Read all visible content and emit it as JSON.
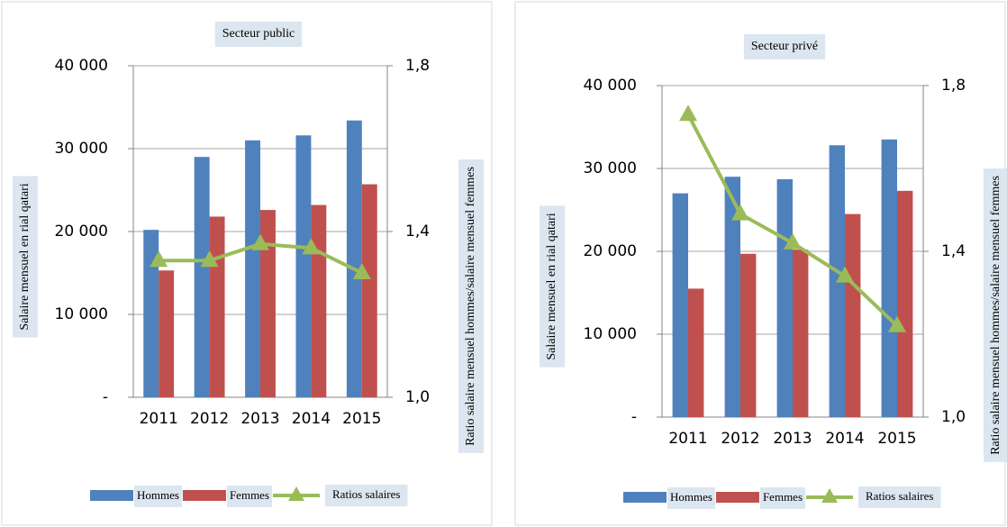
{
  "chart_data": [
    {
      "type": "bar",
      "title": "Secteur public",
      "y_label": "Salaire mensuel en rial qatari",
      "y2_label": "Ratio salaire mensuel hommes/salaire mensuel femmes",
      "categories": [
        "2011",
        "2012",
        "2013",
        "2014",
        "2015"
      ],
      "series": [
        {
          "name": "Hommes",
          "color": "#4f81bd",
          "values": [
            20200,
            29000,
            31000,
            31600,
            33400
          ]
        },
        {
          "name": "Femmes",
          "color": "#c0504d",
          "values": [
            15300,
            21800,
            22600,
            23200,
            25700
          ]
        },
        {
          "name": "Ratios salaires",
          "color": "#9bbb59",
          "axis": "y2",
          "values": [
            1.33,
            1.33,
            1.37,
            1.36,
            1.3
          ]
        }
      ],
      "ylim": [
        0,
        40000
      ],
      "yticks": [
        {
          "value": 0,
          "label": "-"
        },
        {
          "value": 10000,
          "label": "10 000"
        },
        {
          "value": 20000,
          "label": "20 000"
        },
        {
          "value": 30000,
          "label": "30 000"
        },
        {
          "value": 40000,
          "label": "40 000"
        }
      ],
      "y2lim": [
        1.0,
        1.8
      ],
      "y2ticks": [
        {
          "value": 1.0,
          "label": "1,0"
        },
        {
          "value": 1.4,
          "label": "1,4"
        },
        {
          "value": 1.8,
          "label": "1,8"
        }
      ],
      "grid": true,
      "legend": "bottom"
    },
    {
      "type": "bar",
      "title": "Secteur privé",
      "y_label": "Salaire mensuel en rial qatari",
      "y2_label": "Ratio salaire mensuel hommes/salaire mensuel femmes",
      "categories": [
        "2011",
        "2012",
        "2013",
        "2014",
        "2015"
      ],
      "series": [
        {
          "name": "Hommes",
          "color": "#4f81bd",
          "values": [
            27000,
            29000,
            28700,
            32800,
            33500
          ]
        },
        {
          "name": "Femmes",
          "color": "#c0504d",
          "values": [
            15500,
            19700,
            20200,
            24500,
            27300
          ]
        },
        {
          "name": "Ratios salaires",
          "color": "#9bbb59",
          "axis": "y2",
          "values": [
            1.73,
            1.49,
            1.42,
            1.34,
            1.22
          ]
        }
      ],
      "ylim": [
        0,
        40000
      ],
      "yticks": [
        {
          "value": 0,
          "label": "-"
        },
        {
          "value": 10000,
          "label": "10 000"
        },
        {
          "value": 20000,
          "label": "20 000"
        },
        {
          "value": 30000,
          "label": "30 000"
        },
        {
          "value": 40000,
          "label": "40 000"
        }
      ],
      "y2lim": [
        1.0,
        1.8
      ],
      "y2ticks": [
        {
          "value": 1.0,
          "label": "1,0"
        },
        {
          "value": 1.4,
          "label": "1,4"
        },
        {
          "value": 1.8,
          "label": "1,8"
        }
      ],
      "grid": true,
      "legend": "bottom"
    }
  ]
}
